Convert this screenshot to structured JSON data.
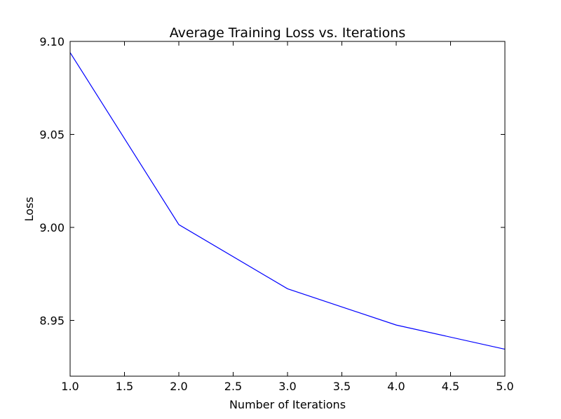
{
  "chart_data": {
    "type": "line",
    "title": "Average Training Loss vs. Iterations",
    "xlabel": "Number of Iterations",
    "ylabel": "Loss",
    "xlim": [
      1.0,
      5.0
    ],
    "ylim": [
      8.92,
      9.1
    ],
    "xticks": [
      "1.0",
      "1.5",
      "2.0",
      "2.5",
      "3.0",
      "3.5",
      "4.0",
      "4.5",
      "5.0"
    ],
    "yticks": [
      "8.95",
      "9.00",
      "9.05",
      "9.10"
    ],
    "grid": false,
    "series": [
      {
        "color": "#0000ff",
        "x": [
          1,
          2,
          3,
          4,
          5
        ],
        "y": [
          9.094,
          9.0015,
          8.967,
          8.9475,
          8.9345
        ]
      }
    ]
  }
}
